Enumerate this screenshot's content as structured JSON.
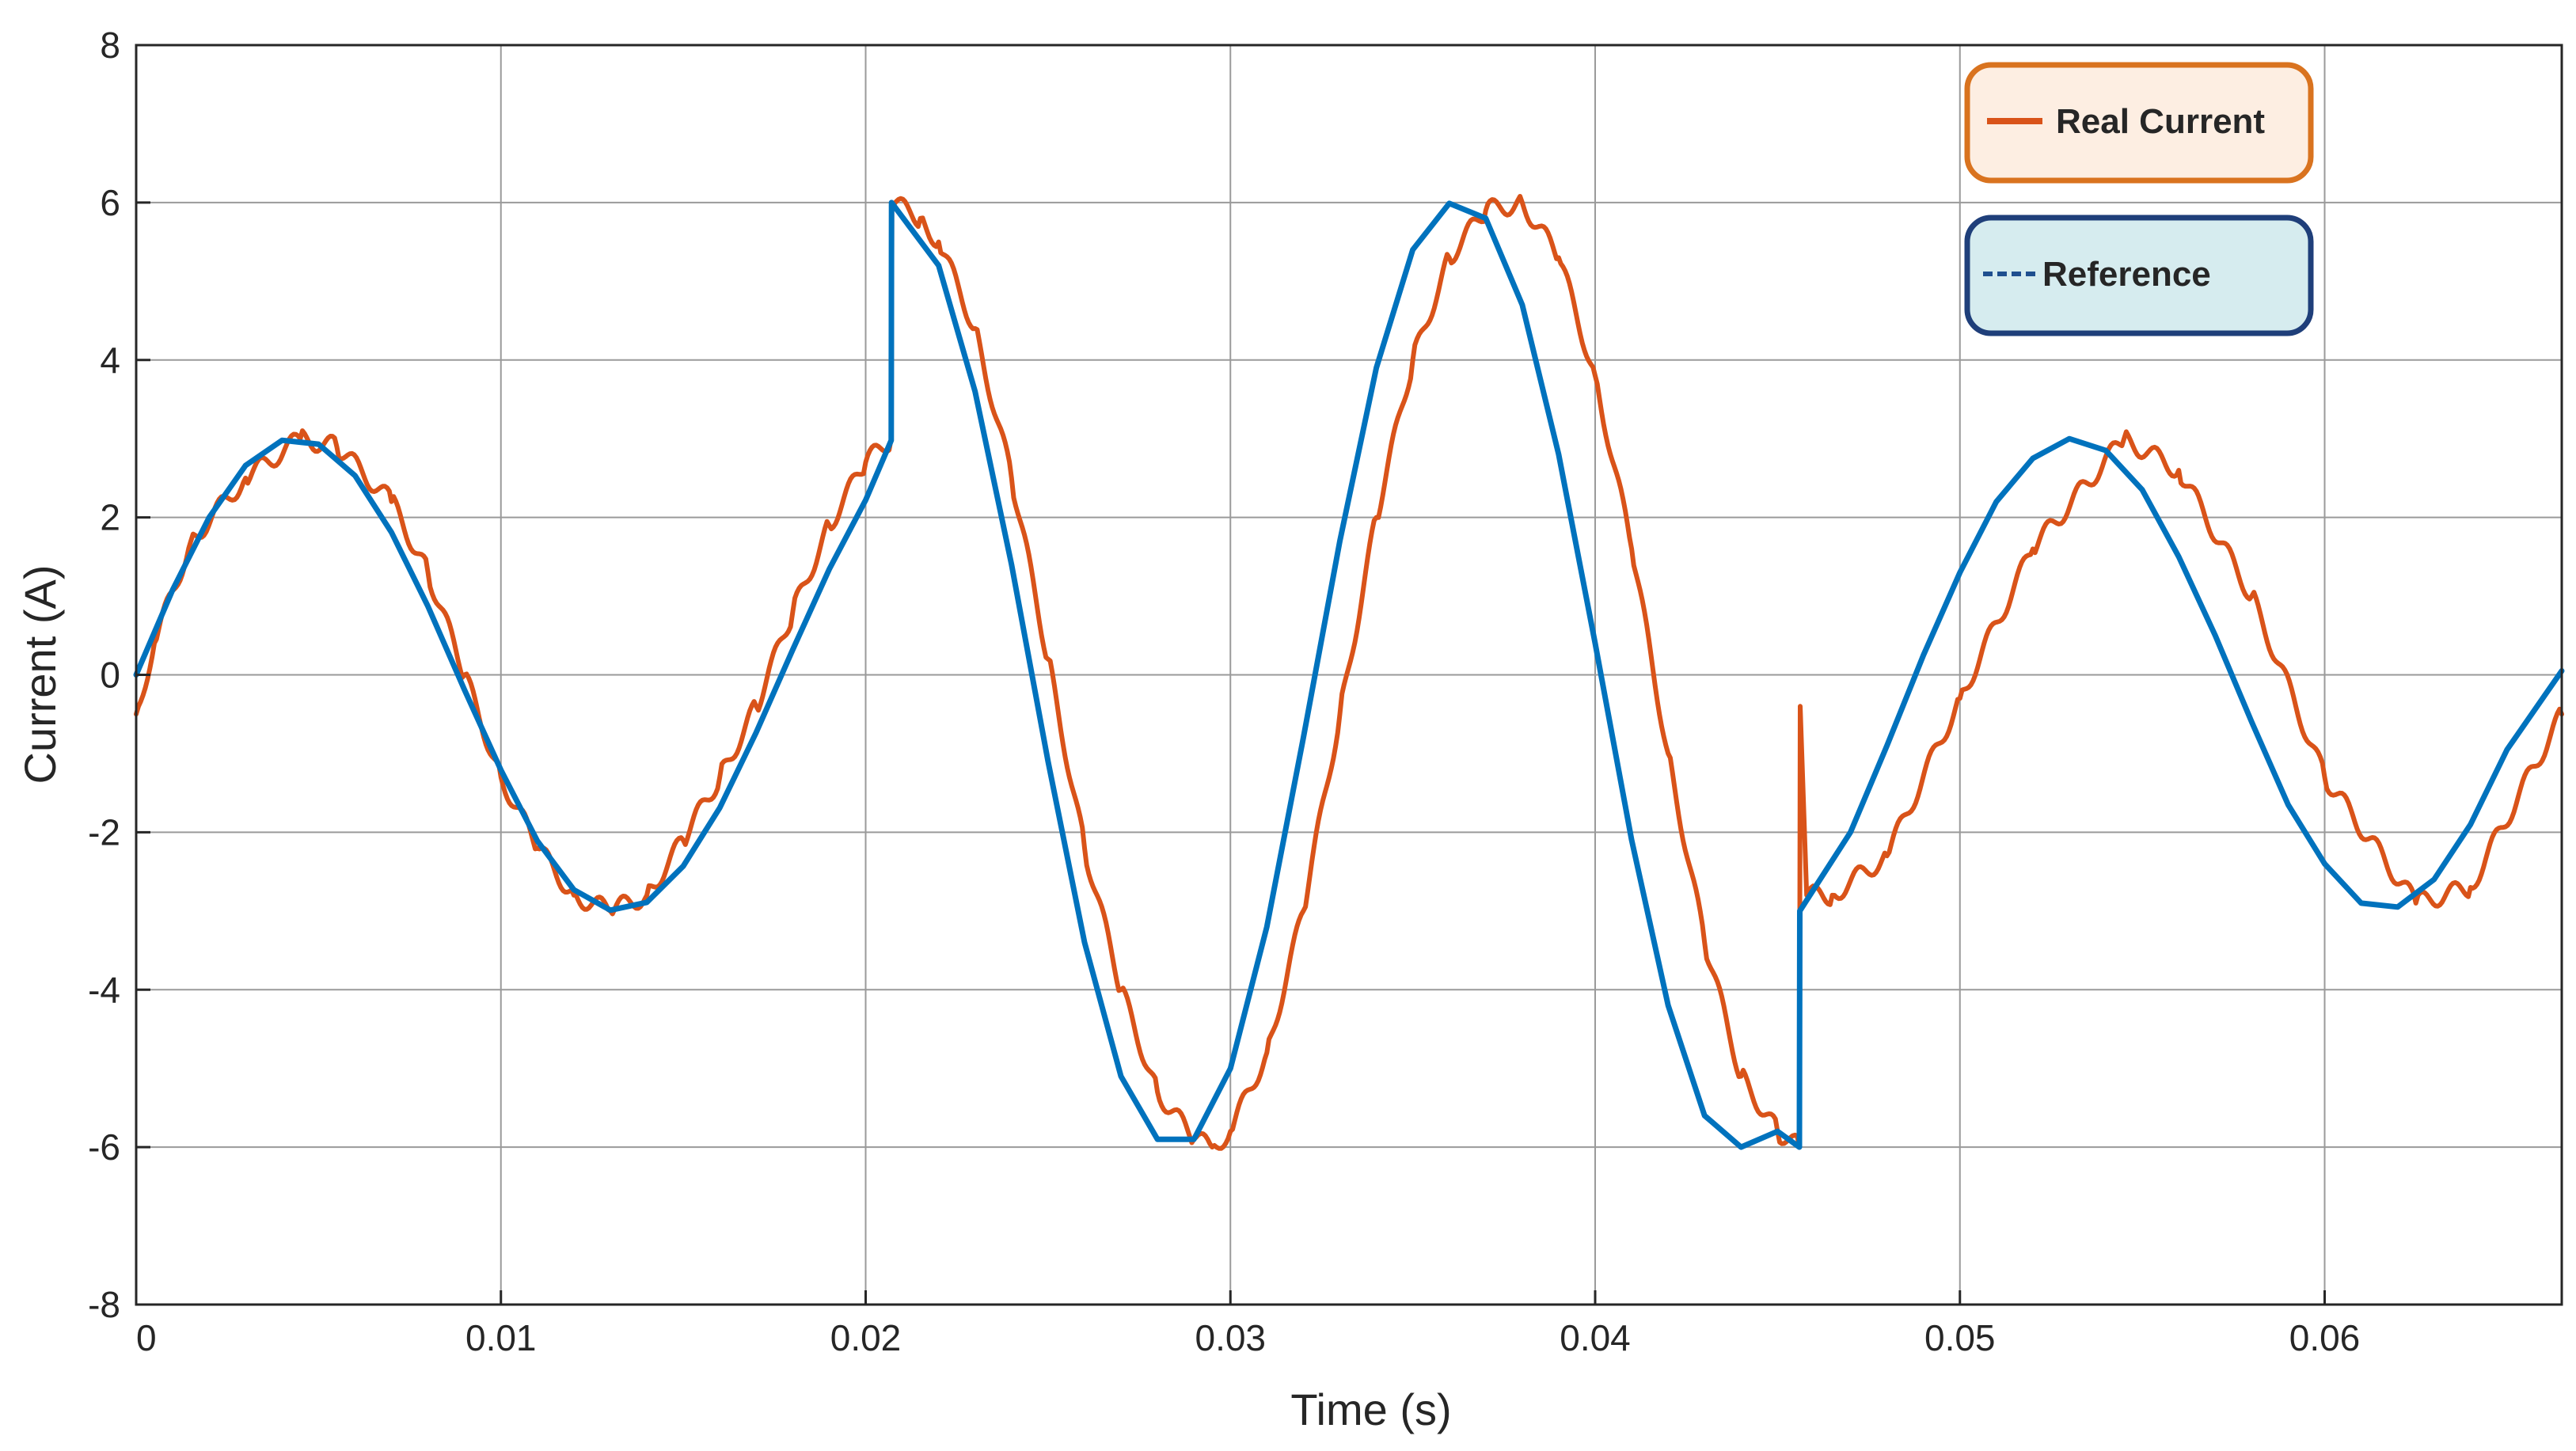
{
  "chart_data": {
    "type": "line",
    "title": "",
    "xlabel": "Time (s)",
    "ylabel": "Current (A)",
    "xlim": [
      0,
      0.0665
    ],
    "ylim": [
      -8,
      8
    ],
    "xticks": [
      0,
      0.01,
      0.02,
      0.03,
      0.04,
      0.05,
      0.06
    ],
    "xtick_labels": [
      "0",
      "0.01",
      "0.02",
      "0.03",
      "0.04",
      "0.05",
      "0.06"
    ],
    "yticks": [
      -8,
      -6,
      -4,
      -2,
      0,
      2,
      4,
      6,
      8
    ],
    "ytick_labels": [
      "-8",
      "-6",
      "-4",
      "-2",
      "0",
      "2",
      "4",
      "6",
      "8"
    ],
    "grid": true,
    "legend_position": "top-right",
    "series": [
      {
        "name": "Real Current",
        "color": "#d95319",
        "style": "solid-noisy",
        "x": [
          0,
          0.0005,
          0.0015,
          0.003,
          0.0045,
          0.0055,
          0.007,
          0.008,
          0.009,
          0.01,
          0.011,
          0.012,
          0.013,
          0.014,
          0.015,
          0.016,
          0.017,
          0.018,
          0.019,
          0.02,
          0.0207,
          0.02072,
          0.0215,
          0.022,
          0.023,
          0.024,
          0.025,
          0.026,
          0.027,
          0.028,
          0.029,
          0.0295,
          0.03,
          0.031,
          0.032,
          0.033,
          0.034,
          0.035,
          0.036,
          0.037,
          0.038,
          0.039,
          0.04,
          0.041,
          0.042,
          0.043,
          0.044,
          0.045,
          0.0456,
          0.04562,
          0.0458,
          0.0465,
          0.048,
          0.05,
          0.052,
          0.0545,
          0.056,
          0.058,
          0.06,
          0.0625,
          0.064,
          0.0665
        ],
        "y": [
          -0.5,
          0.4,
          1.7,
          2.5,
          3.0,
          2.9,
          2.2,
          1.3,
          0.0,
          -1.3,
          -2.2,
          -2.8,
          -3.0,
          -2.8,
          -2.1,
          -1.3,
          -0.4,
          0.8,
          1.9,
          2.7,
          3.0,
          6.0,
          5.8,
          5.5,
          4.4,
          2.5,
          0.2,
          -2.2,
          -4.0,
          -5.3,
          -5.9,
          -6.0,
          -5.8,
          -4.8,
          -3.0,
          -0.5,
          2.0,
          4.0,
          5.3,
          5.9,
          6.0,
          5.3,
          3.8,
          1.6,
          -1.0,
          -3.4,
          -5.1,
          -5.8,
          -6.0,
          -0.4,
          -2.8,
          -2.8,
          -2.3,
          -0.3,
          1.6,
          3.0,
          2.6,
          1.0,
          -1.3,
          -2.9,
          -2.7,
          -0.5
        ]
      },
      {
        "name": "Reference",
        "color": "#0072bd",
        "style": "solid",
        "x": [
          0,
          0.001,
          0.002,
          0.003,
          0.004,
          0.005,
          0.006,
          0.007,
          0.008,
          0.009,
          0.01,
          0.011,
          0.012,
          0.013,
          0.014,
          0.015,
          0.016,
          0.017,
          0.018,
          0.019,
          0.02,
          0.0207,
          0.02071,
          0.022,
          0.023,
          0.024,
          0.025,
          0.026,
          0.027,
          0.028,
          0.029,
          0.03,
          0.031,
          0.032,
          0.033,
          0.034,
          0.035,
          0.036,
          0.037,
          0.038,
          0.039,
          0.04,
          0.041,
          0.042,
          0.043,
          0.044,
          0.045,
          0.0456,
          0.04561,
          0.047,
          0.048,
          0.049,
          0.05,
          0.051,
          0.052,
          0.053,
          0.054,
          0.055,
          0.056,
          0.057,
          0.058,
          0.059,
          0.06,
          0.061,
          0.062,
          0.063,
          0.064,
          0.065,
          0.0665
        ],
        "y": [
          0,
          1.08,
          2.0,
          2.66,
          2.98,
          2.93,
          2.53,
          1.81,
          0.87,
          -0.19,
          -1.21,
          -2.11,
          -2.73,
          -2.99,
          -2.89,
          -2.43,
          -1.69,
          -0.73,
          0.32,
          1.34,
          2.22,
          2.98,
          6.0,
          5.2,
          3.6,
          1.4,
          -1.1,
          -3.4,
          -5.1,
          -5.9,
          -5.9,
          -5.0,
          -3.2,
          -0.8,
          1.7,
          3.9,
          5.4,
          5.99,
          5.8,
          4.7,
          2.8,
          0.4,
          -2.1,
          -4.2,
          -5.6,
          -6.0,
          -5.8,
          -6.0,
          -3.0,
          -2.0,
          -0.9,
          0.25,
          1.3,
          2.2,
          2.75,
          3.0,
          2.85,
          2.35,
          1.5,
          0.5,
          -0.6,
          -1.65,
          -2.4,
          -2.9,
          -2.95,
          -2.6,
          -1.9,
          -0.95,
          0.05
        ]
      }
    ],
    "legend": [
      {
        "label": "Real Current",
        "color": "#d95319",
        "box_fill": "#fdeee2",
        "box_border": "#d9731f"
      },
      {
        "label": "Reference",
        "color": "#1f4f8f",
        "box_fill": "#d6ecef",
        "box_border": "#1f3f7a"
      }
    ]
  }
}
